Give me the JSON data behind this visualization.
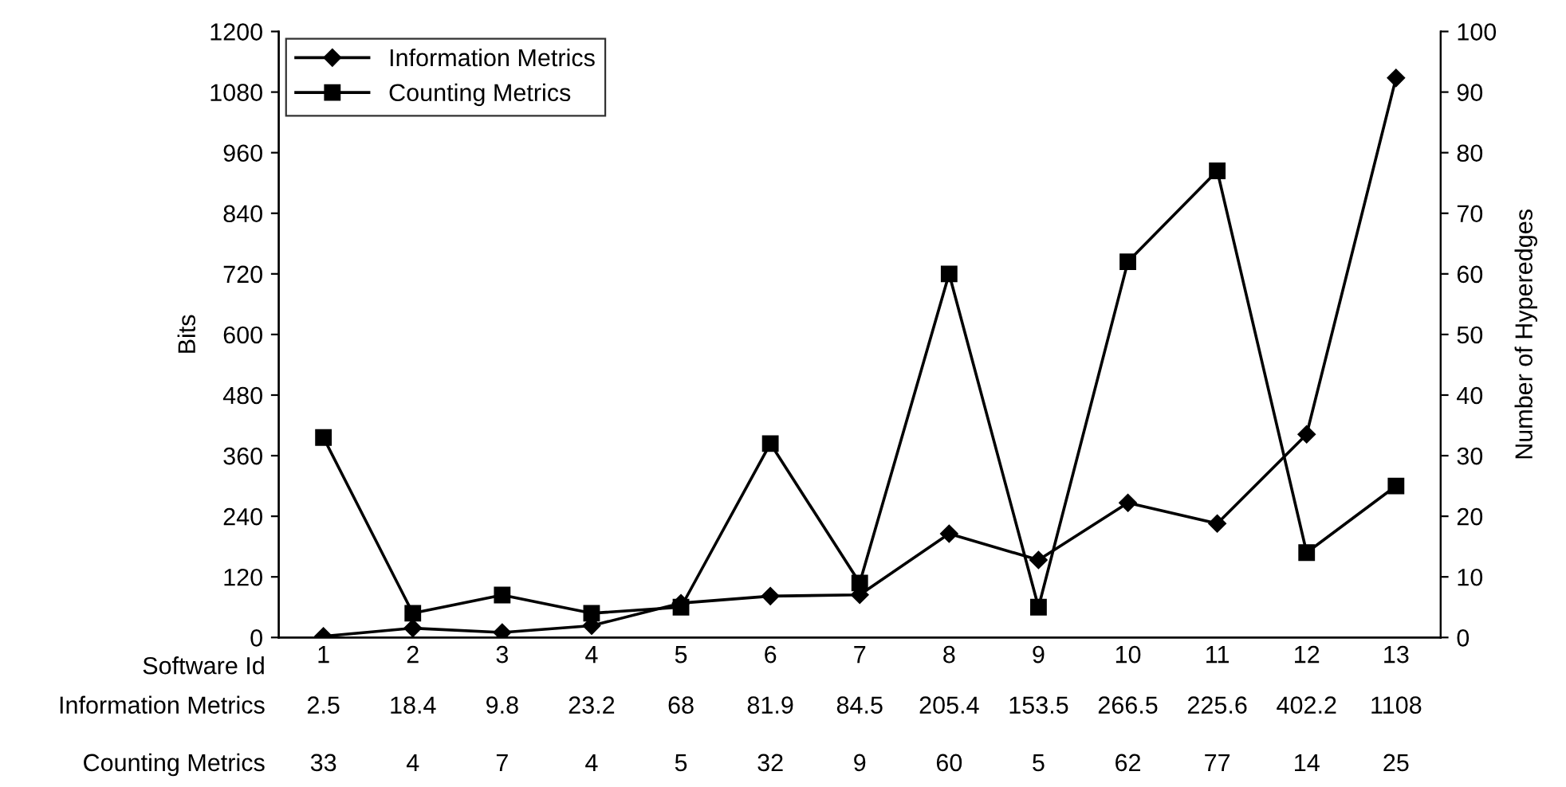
{
  "chart_data": {
    "type": "line",
    "xlabel": "Software Id",
    "ylabel": "Bits",
    "y2label": "Number of Hyperedges",
    "categories": [
      "1",
      "2",
      "3",
      "4",
      "5",
      "6",
      "7",
      "8",
      "9",
      "10",
      "11",
      "12",
      "13"
    ],
    "series": [
      {
        "name": "Information Metrics",
        "color": "#000000",
        "marker": "diamond",
        "values": [
          2.5,
          18.4,
          9.8,
          23.2,
          68,
          81.9,
          84.5,
          205.4,
          153.5,
          266.5,
          225.6,
          402.2,
          1108
        ]
      },
      {
        "name": "Counting Metrics",
        "color": "#000000",
        "marker": "square",
        "axis": "y2",
        "values": [
          33,
          4,
          7,
          4,
          5,
          32,
          9,
          60,
          5,
          62,
          77,
          14,
          25
        ]
      }
    ],
    "ylim": [
      0,
      1200
    ],
    "yticks": [
      0,
      120,
      240,
      360,
      480,
      600,
      720,
      840,
      960,
      1080,
      1200
    ],
    "y2lim": [
      0,
      100
    ],
    "y2ticks": [
      0,
      10,
      20,
      30,
      40,
      50,
      60,
      70,
      80,
      90,
      100
    ],
    "data_labels": true,
    "legend": "top left",
    "grid": false,
    "line_style": "solid"
  }
}
